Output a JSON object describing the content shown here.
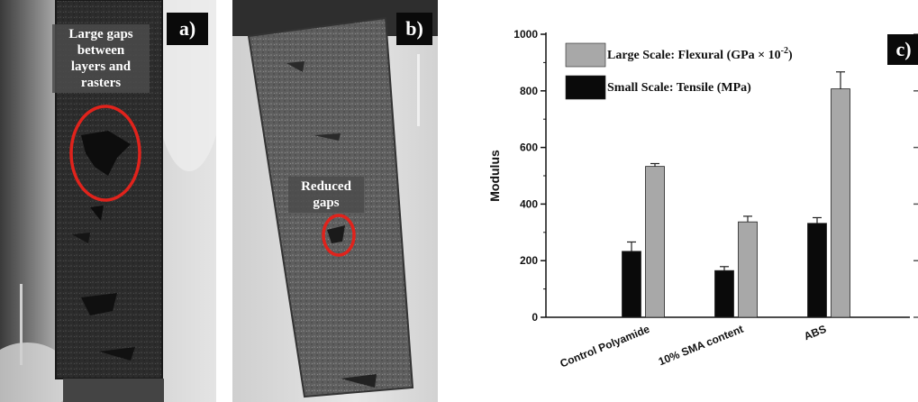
{
  "panels": {
    "a": {
      "tag": "a)",
      "callout_lines": [
        "Large gaps",
        "between",
        "layers and",
        "rasters"
      ]
    },
    "b": {
      "tag": "b)",
      "callout_lines": [
        "Reduced",
        "gaps"
      ]
    },
    "c": {
      "tag": "c)"
    }
  },
  "colors": {
    "tensile": "#0a0a0a",
    "flexural": "#a8a8a8",
    "highlight_ring": "#e0231c",
    "tag_background": "#0a0a0a"
  },
  "chart_data": {
    "type": "bar",
    "categories": [
      "Control Polyamide",
      "10% SMA content",
      "ABS"
    ],
    "series": [
      {
        "name": "Small Scale: Tensile (MPa)",
        "values": [
          233,
          165,
          332
        ],
        "errors": [
          33,
          14,
          20
        ]
      },
      {
        "name": "Large Scale: Flexural (GPa × 10",
        "name_sup": "-2",
        "name_tail": ")",
        "values": [
          533,
          337,
          807
        ],
        "errors": [
          10,
          20,
          60
        ]
      }
    ],
    "title": "",
    "xlabel": "",
    "ylabel": "Modulus",
    "ylim": [
      0,
      1000
    ],
    "yticks": [
      "0",
      "200",
      "400",
      "600",
      "800",
      "1000"
    ],
    "legend_position": "top-left",
    "grid": false
  }
}
